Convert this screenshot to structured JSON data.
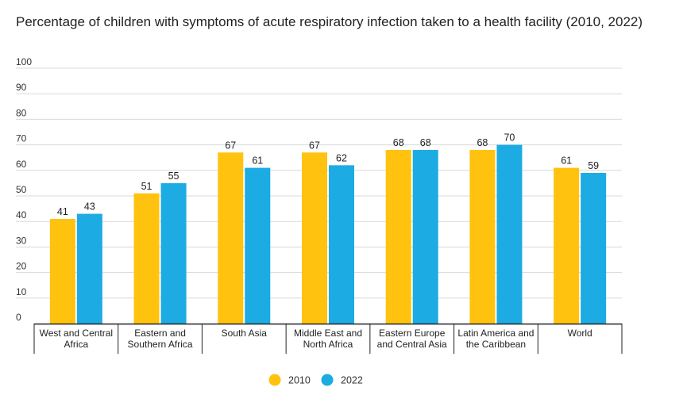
{
  "chart_data": {
    "type": "bar",
    "title": "Percentage of children with symptoms of acute respiratory infection taken to a health facility (2010, 2022)",
    "xlabel": "",
    "ylabel": "",
    "ylim": [
      0,
      100
    ],
    "yticks": [
      0,
      10,
      20,
      30,
      40,
      50,
      60,
      70,
      80,
      90,
      100
    ],
    "grid": true,
    "legend_position": "bottom-center",
    "categories": [
      [
        "West and Central",
        "Africa"
      ],
      [
        "Eastern and",
        "Southern Africa"
      ],
      [
        "South Asia"
      ],
      [
        "Middle East and",
        "North Africa"
      ],
      [
        "Eastern Europe",
        "and Central Asia"
      ],
      [
        "Latin America and",
        "the Caribbean"
      ],
      [
        "World"
      ]
    ],
    "series": [
      {
        "name": "2010",
        "color": "#FFC20E",
        "values": [
          41,
          51,
          67,
          67,
          68,
          68,
          61
        ]
      },
      {
        "name": "2022",
        "color": "#1CABE2",
        "values": [
          43,
          55,
          61,
          62,
          68,
          70,
          59
        ]
      }
    ]
  }
}
